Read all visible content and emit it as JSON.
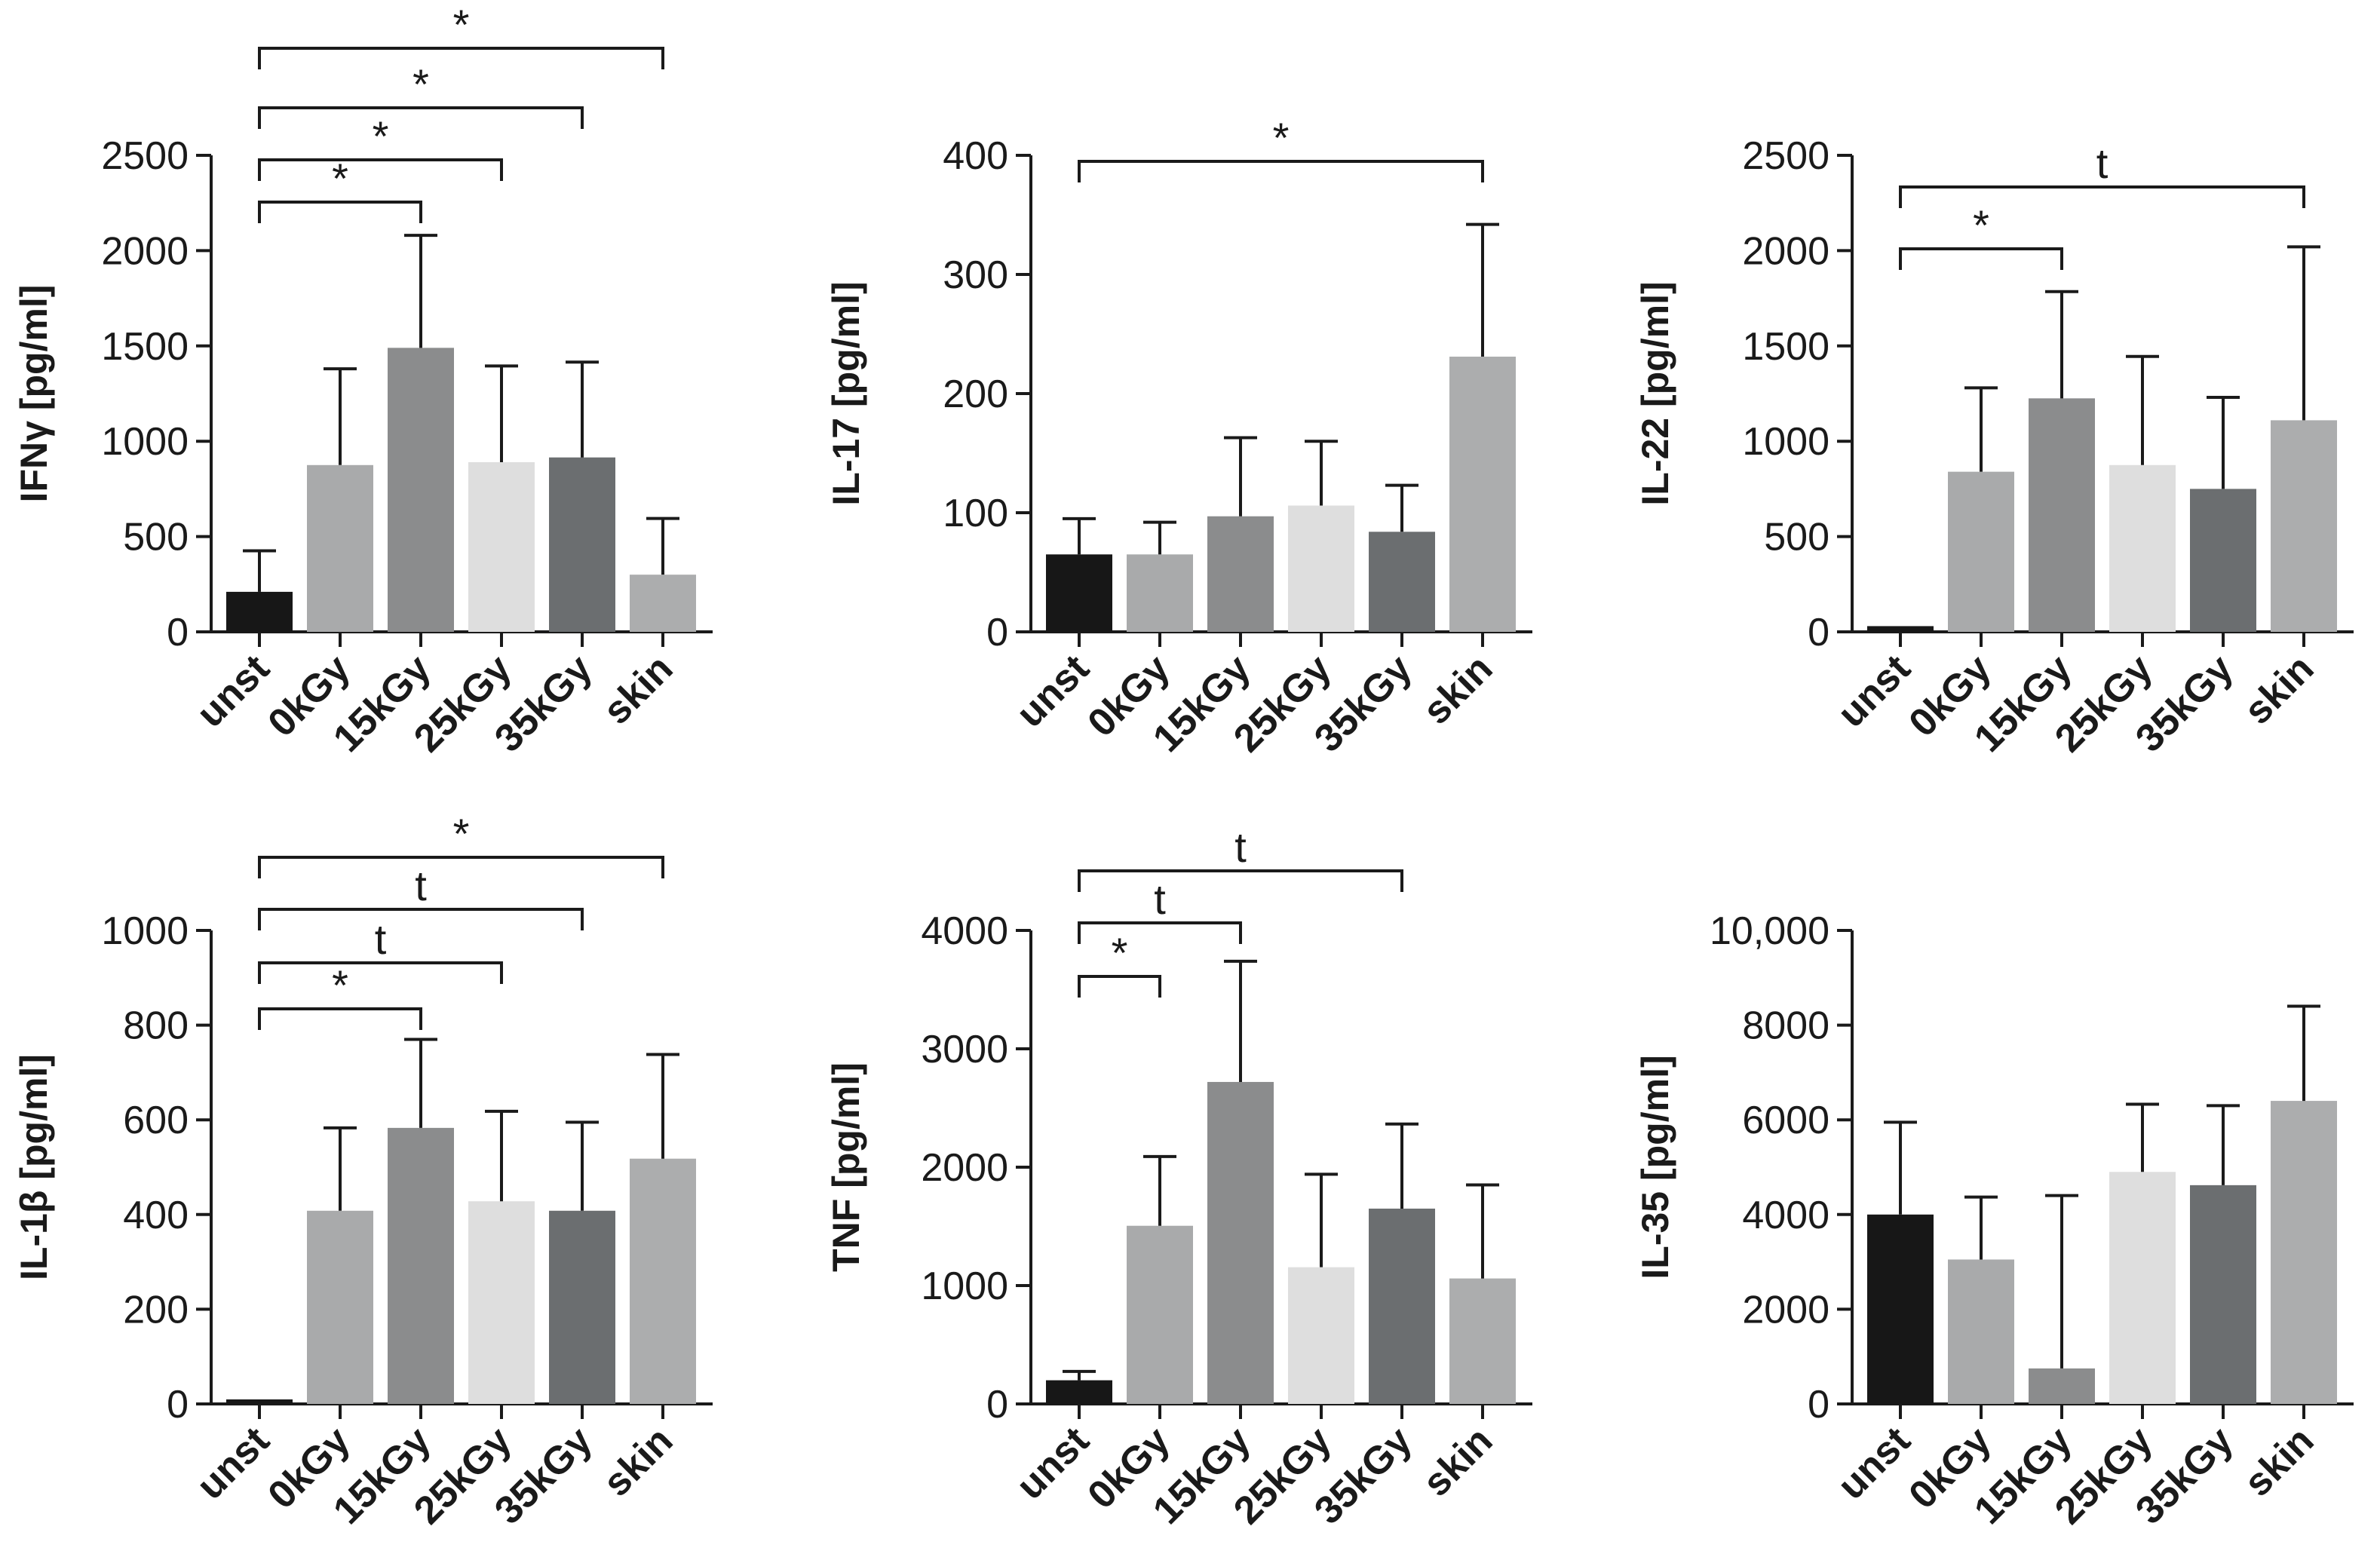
{
  "chart_data": [
    {
      "type": "bar",
      "panel": "top-left",
      "ylabel": "IFNγ [pg/ml]",
      "categories": [
        "unst",
        "0kGy",
        "15kGy",
        "25kGy",
        "35kGy",
        "skin"
      ],
      "values": [
        210,
        875,
        1490,
        890,
        915,
        300
      ],
      "error_upper": [
        425,
        1380,
        2080,
        1395,
        1415,
        595
      ],
      "ylim": [
        0,
        2500
      ],
      "yticks": [
        0,
        500,
        1000,
        1500,
        2000,
        2500
      ],
      "ytick_labels": [
        "0",
        "500",
        "1000",
        "1500",
        "2000",
        "2500"
      ],
      "significance": [
        {
          "from": "unst",
          "to": "15kGy",
          "label": "*"
        },
        {
          "from": "unst",
          "to": "25kGy",
          "label": "*"
        },
        {
          "from": "unst",
          "to": "35kGy",
          "label": "*"
        },
        {
          "from": "unst",
          "to": "skin",
          "label": "*"
        }
      ]
    },
    {
      "type": "bar",
      "panel": "top-middle",
      "ylabel": "IL-17 [pg/ml]",
      "categories": [
        "unst",
        "0kGy",
        "15kGy",
        "25kGy",
        "35kGy",
        "skin"
      ],
      "values": [
        65,
        65,
        97,
        106,
        84,
        231
      ],
      "error_upper": [
        95,
        92,
        163,
        160,
        123,
        342
      ],
      "ylim": [
        0,
        400
      ],
      "yticks": [
        0,
        100,
        200,
        300,
        400
      ],
      "ytick_labels": [
        "0",
        "100",
        "200",
        "300",
        "400"
      ],
      "significance": [
        {
          "from": "unst",
          "to": "skin",
          "label": "*"
        }
      ]
    },
    {
      "type": "bar",
      "panel": "top-right",
      "ylabel": "IL-22 [pg/ml]",
      "categories": [
        "unst",
        "0kGy",
        "15kGy",
        "25kGy",
        "35kGy",
        "skin"
      ],
      "values": [
        30,
        840,
        1225,
        875,
        750,
        1110
      ],
      "error_upper": [
        30,
        1280,
        1785,
        1445,
        1230,
        2020
      ],
      "ylim": [
        0,
        2500
      ],
      "yticks": [
        0,
        500,
        1000,
        1500,
        2000,
        2500
      ],
      "ytick_labels": [
        "0",
        "500",
        "1000",
        "1500",
        "2000",
        "2500"
      ],
      "significance": [
        {
          "from": "unst",
          "to": "15kGy",
          "label": "*"
        },
        {
          "from": "unst",
          "to": "skin",
          "label": "t"
        }
      ]
    },
    {
      "type": "bar",
      "panel": "bottom-left",
      "ylabel": "IL-1β [pg/ml]",
      "categories": [
        "unst",
        "0kGy",
        "15kGy",
        "25kGy",
        "35kGy",
        "skin"
      ],
      "values": [
        5,
        408,
        583,
        428,
        408,
        518
      ],
      "error_upper": [
        5,
        583,
        770,
        618,
        595,
        738
      ],
      "ylim": [
        0,
        1000
      ],
      "yticks": [
        0,
        200,
        400,
        600,
        800,
        1000
      ],
      "ytick_labels": [
        "0",
        "200",
        "400",
        "600",
        "800",
        "1000"
      ],
      "significance": [
        {
          "from": "unst",
          "to": "15kGy",
          "label": "*"
        },
        {
          "from": "unst",
          "to": "25kGy",
          "label": "t"
        },
        {
          "from": "unst",
          "to": "35kGy",
          "label": "t"
        },
        {
          "from": "unst",
          "to": "skin",
          "label": "*"
        }
      ]
    },
    {
      "type": "bar",
      "panel": "bottom-middle",
      "ylabel": "TNF [pg/ml]",
      "categories": [
        "unst",
        "0kGy",
        "15kGy",
        "25kGy",
        "35kGy",
        "skin"
      ],
      "values": [
        200,
        1505,
        2720,
        1155,
        1650,
        1060
      ],
      "error_upper": [
        275,
        2090,
        3740,
        1940,
        2365,
        1850
      ],
      "ylim": [
        0,
        4000
      ],
      "yticks": [
        0,
        1000,
        2000,
        3000,
        4000
      ],
      "ytick_labels": [
        "0",
        "1000",
        "2000",
        "3000",
        "4000"
      ],
      "significance": [
        {
          "from": "unst",
          "to": "0kGy",
          "label": "*"
        },
        {
          "from": "unst",
          "to": "15kGy",
          "label": "t"
        },
        {
          "from": "unst",
          "to": "35kGy",
          "label": "t"
        }
      ]
    },
    {
      "type": "bar",
      "panel": "bottom-right",
      "ylabel": "IL-35 [pg/ml]",
      "categories": [
        "unst",
        "0kGy",
        "15kGy",
        "25kGy",
        "35kGy",
        "skin"
      ],
      "values": [
        4000,
        3050,
        750,
        4900,
        4620,
        6400
      ],
      "error_upper": [
        5950,
        4370,
        4400,
        6330,
        6300,
        8400
      ],
      "ylim": [
        0,
        10000
      ],
      "yticks": [
        0,
        2000,
        4000,
        6000,
        8000,
        10000
      ],
      "ytick_labels": [
        "0",
        "2000",
        "4000",
        "6000",
        "8000",
        "10,000"
      ],
      "significance": []
    }
  ],
  "bar_colors": [
    "#171717",
    "#a9aaab",
    "#8b8c8d",
    "#dedede",
    "#6b6e70",
    "#acadae"
  ],
  "axis_color": "#1a1a1a"
}
